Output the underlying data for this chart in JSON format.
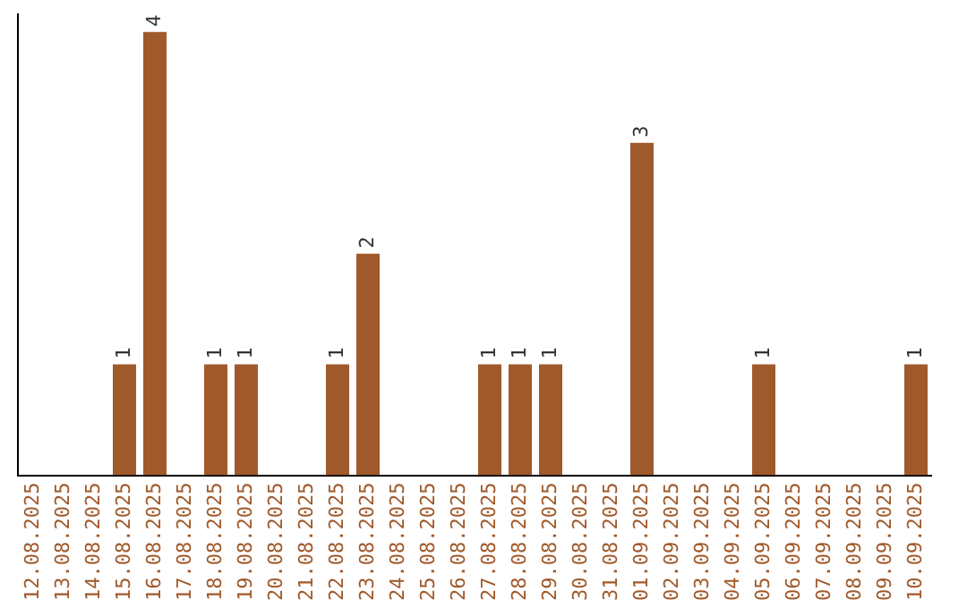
{
  "chart_data": {
    "type": "bar",
    "categories": [
      "12.08.2025",
      "13.08.2025",
      "14.08.2025",
      "15.08.2025",
      "16.08.2025",
      "17.08.2025",
      "18.08.2025",
      "19.08.2025",
      "20.08.2025",
      "21.08.2025",
      "22.08.2025",
      "23.08.2025",
      "24.08.2025",
      "25.08.2025",
      "26.08.2025",
      "27.08.2025",
      "28.08.2025",
      "29.08.2025",
      "30.08.2025",
      "31.08.2025",
      "01.09.2025",
      "02.09.2025",
      "03.09.2025",
      "04.09.2025",
      "05.09.2025",
      "06.09.2025",
      "07.09.2025",
      "08.09.2025",
      "09.09.2025",
      "10.09.2025"
    ],
    "values": [
      0,
      0,
      0,
      1,
      4,
      0,
      1,
      1,
      0,
      0,
      1,
      2,
      0,
      0,
      0,
      1,
      1,
      1,
      0,
      0,
      3,
      0,
      0,
      0,
      1,
      0,
      0,
      0,
      0,
      1
    ],
    "value_labels": [
      null,
      null,
      null,
      "1",
      "4",
      null,
      "1",
      "1",
      null,
      null,
      "1",
      "2",
      null,
      null,
      null,
      "1",
      "1",
      "1",
      null,
      null,
      "3",
      null,
      null,
      null,
      "1",
      null,
      null,
      null,
      null,
      "1"
    ],
    "color": "#a0592a",
    "grid": false,
    "legend": false
  }
}
